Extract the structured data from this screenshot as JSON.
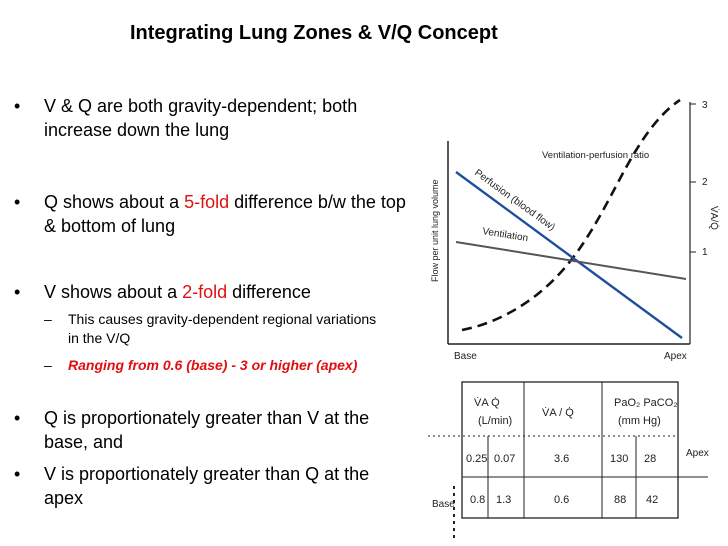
{
  "title": "Integrating Lung Zones & V/Q Concept",
  "bullets": [
    {
      "text": "V & Q are both gravity-dependent; both increase down the lung"
    },
    {
      "pre": "Q shows about a ",
      "em": "5-fold",
      "post": " difference b/w the top & bottom of lung"
    },
    {
      "pre": "V shows about a ",
      "em": "2-fold",
      "post": " difference"
    },
    {
      "text": "This causes gravity-dependent regional variations in the V/Q"
    },
    {
      "text": "Ranging from 0.6 (base) -  3 or higher (apex)"
    },
    {
      "text": "Q is proportionately greater than V at the base, and"
    },
    {
      "text": "V is proportionately greater than Q at the apex"
    }
  ],
  "graph": {
    "ylabel": "Flow per unit lung volume",
    "right_axis_label": "V̇A/Q̇",
    "right_ticks": [
      "3",
      "2",
      "1"
    ],
    "curve_labels": {
      "vq": "Ventilation-perfusion ratio",
      "perfusion": "Perfusion (blood flow)",
      "ventilation": "Ventilation"
    },
    "x_left": "Base",
    "x_right": "Apex",
    "colors": {
      "perfusion": "#1f4e9c",
      "ventilation": "#555555",
      "vq": "#111111"
    }
  },
  "table": {
    "headers": [
      "V̇A   Q̇",
      "(L/min)",
      "V̇A / Q̇",
      "PaO₂  PaCO₂",
      "(mm Hg)"
    ],
    "rows": [
      {
        "label": "Apex",
        "values": [
          "0.25",
          "0.07",
          "3.6",
          "130",
          "28"
        ]
      },
      {
        "label": "Base",
        "values": [
          "0.8",
          "1.3",
          "0.6",
          "88",
          "42"
        ]
      }
    ]
  }
}
